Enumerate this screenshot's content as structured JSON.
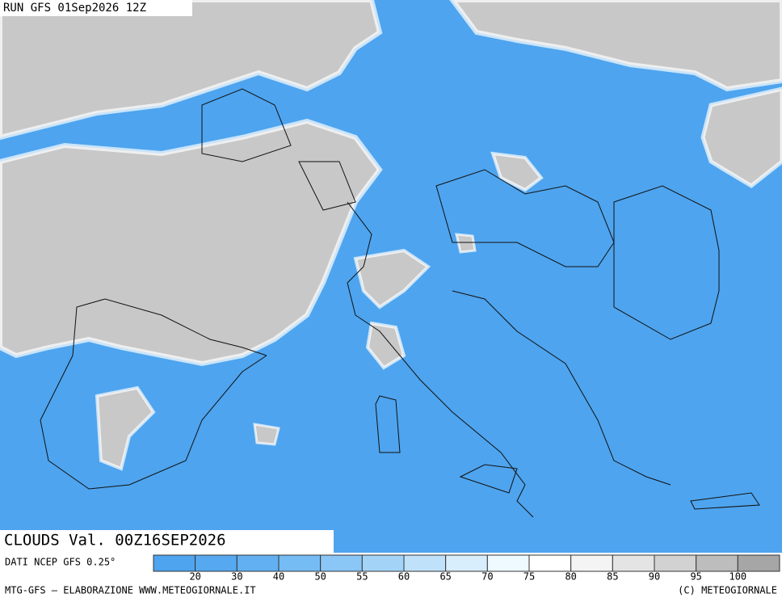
{
  "header": {
    "run": "RUN GFS 01Sep2026 12Z"
  },
  "map": {
    "field": "CLOUDS Val. 00Z16SEP2026"
  },
  "legend": {
    "source": "DATI NCEP GFS 0.25°",
    "labels": [
      20,
      30,
      40,
      50,
      55,
      60,
      65,
      70,
      75,
      80,
      85,
      90,
      95,
      100
    ],
    "colors": [
      "#4ea4ee",
      "#56a9f0",
      "#62b0f2",
      "#76bcf4",
      "#8ac7f6",
      "#a3d4f8",
      "#bfe2fa",
      "#d8eefc",
      "#eefaff",
      "#ffffff",
      "#f4f4f4",
      "#e4e4e4",
      "#d2d2d2",
      "#bdbdbd",
      "#a6a6a6"
    ]
  },
  "footer": {
    "left": "MTG-GFS — ELABORAZIONE WWW.METEOGIORNALE.IT",
    "right": "(C) METEOGIORNALE"
  }
}
